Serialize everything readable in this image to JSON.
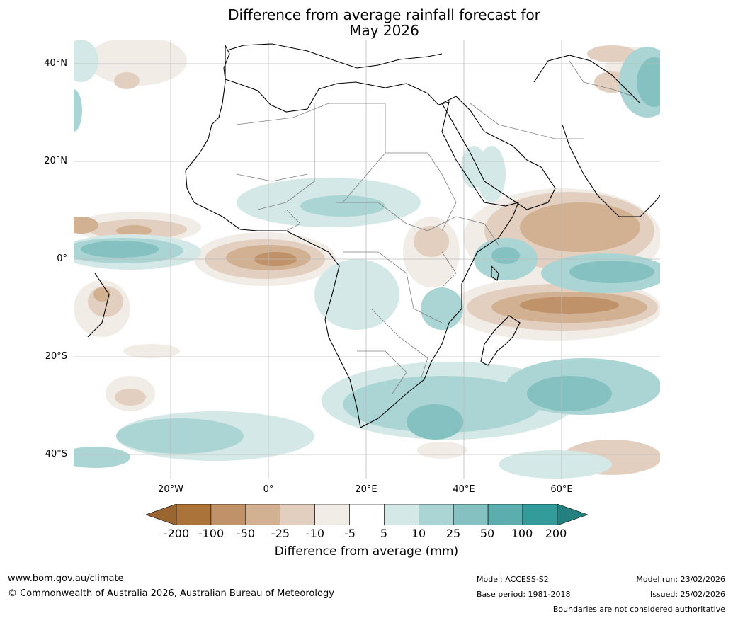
{
  "title_line1": "Difference from average rainfall forecast for",
  "title_line2": "May 2026",
  "lat_labels": [
    "40°N",
    "20°N",
    "0°",
    "20°S",
    "40°S"
  ],
  "lon_labels": [
    "20°W",
    "0°",
    "20°E",
    "40°E",
    "60°E"
  ],
  "colorbar": {
    "ticks": [
      "-200",
      "-100",
      "-50",
      "-25",
      "-10",
      "-5",
      "5",
      "10",
      "25",
      "50",
      "100",
      "200"
    ],
    "colors": [
      "#a9733a",
      "#c0926a",
      "#d2b092",
      "#e2cfbf",
      "#f1ece6",
      "#ffffff",
      "#d4e9e7",
      "#aad5d4",
      "#84c1c0",
      "#5caeae",
      "#339c9a"
    ],
    "under_color": "#9a6530",
    "over_color": "#24807e",
    "label": "Difference from average (mm)"
  },
  "footer": {
    "website": "www.bom.gov.au/climate",
    "copyright": "© Commonwealth of Australia 2026, Australian Bureau of Meteorology",
    "model": "Model: ACCESS-S2",
    "base_period": "Base period: 1981-2018",
    "model_run": "Model run: 23/02/2026",
    "issued": "Issued: 25/02/2026",
    "disclaimer": "Boundaries are not considered authoritative"
  }
}
